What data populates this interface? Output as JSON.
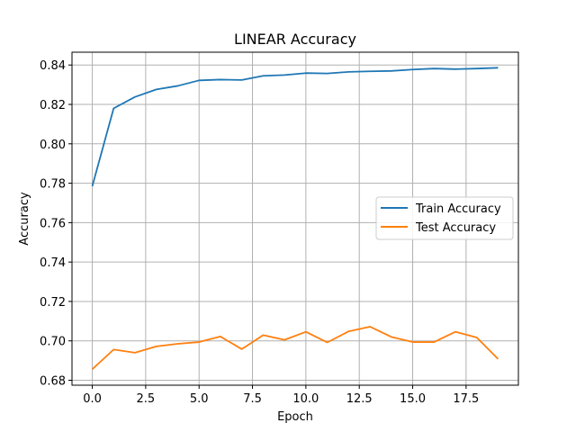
{
  "chart_data": {
    "type": "line",
    "title": "LINEAR Accuracy",
    "xlabel": "Epoch",
    "ylabel": "Accuracy",
    "xlim": [
      -0.95,
      19.95
    ],
    "ylim": [
      0.6775,
      0.8465
    ],
    "xticks": [
      0.0,
      2.5,
      5.0,
      7.5,
      10.0,
      12.5,
      15.0,
      17.5
    ],
    "xtick_labels": [
      "0.0",
      "2.5",
      "5.0",
      "7.5",
      "10.0",
      "12.5",
      "15.0",
      "17.5"
    ],
    "yticks": [
      0.68,
      0.7,
      0.72,
      0.74,
      0.76,
      0.78,
      0.8,
      0.82,
      0.84
    ],
    "ytick_labels": [
      "0.68",
      "0.70",
      "0.72",
      "0.74",
      "0.76",
      "0.78",
      "0.80",
      "0.82",
      "0.84"
    ],
    "grid": true,
    "legend_position": "center-right",
    "x": [
      0,
      1,
      2,
      3,
      4,
      5,
      6,
      7,
      8,
      9,
      10,
      11,
      12,
      13,
      14,
      15,
      16,
      17,
      18,
      19
    ],
    "series": [
      {
        "name": "Train Accuracy",
        "color": "#1f77b4",
        "values": [
          0.7785,
          0.818,
          0.8238,
          0.8276,
          0.8294,
          0.8322,
          0.8326,
          0.8324,
          0.8345,
          0.8349,
          0.8359,
          0.8357,
          0.8365,
          0.8368,
          0.837,
          0.8377,
          0.8382,
          0.8379,
          0.8382,
          0.8386
        ]
      },
      {
        "name": "Test Accuracy",
        "color": "#ff7f0e",
        "values": [
          0.6856,
          0.6956,
          0.694,
          0.6972,
          0.6985,
          0.6994,
          0.7022,
          0.6958,
          0.7029,
          0.7005,
          0.7046,
          0.6992,
          0.7048,
          0.7072,
          0.702,
          0.6994,
          0.6994,
          0.7046,
          0.7017,
          0.6908
        ]
      }
    ]
  }
}
